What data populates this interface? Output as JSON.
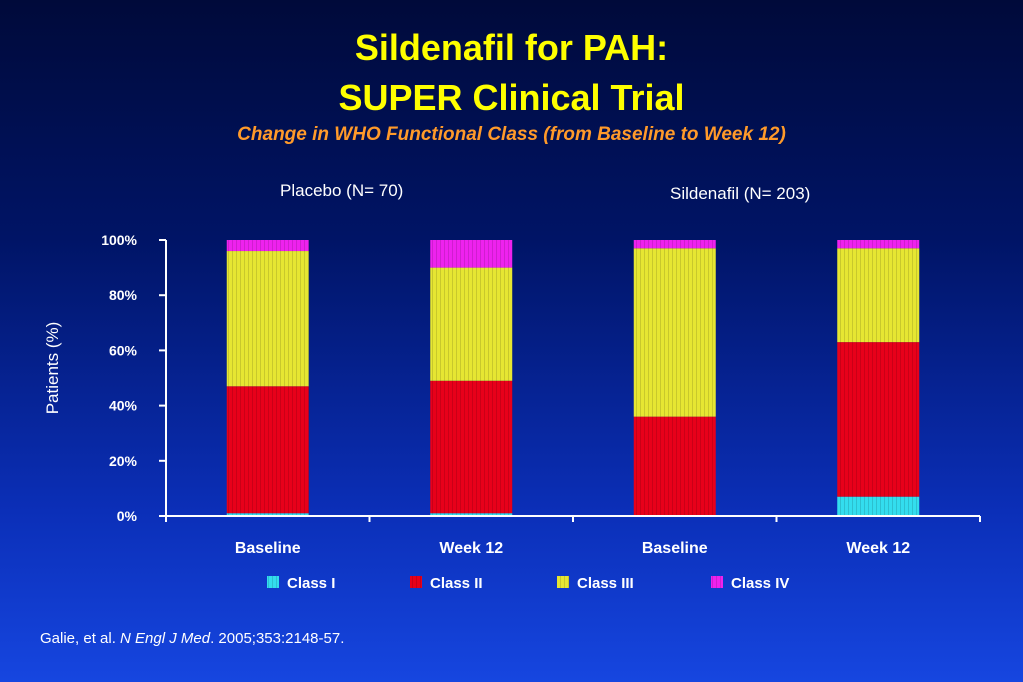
{
  "title_line1": "Sildenafil for PAH:",
  "title_line2": "SUPER Clinical Trial",
  "subtitle": "Change in WHO Functional Class (from Baseline to Week 12)",
  "groups": [
    {
      "label": "Placebo (N= 70)"
    },
    {
      "label": "Sildenafil (N= 203)"
    }
  ],
  "citation": {
    "authors": "Galie, et al. ",
    "journal": "N Engl J Med",
    "details": ". 2005;353:2148-57."
  },
  "chart_data": {
    "type": "bar",
    "stacked": true,
    "categories": [
      "Baseline",
      "Week 12",
      "Baseline",
      "Week 12"
    ],
    "ylabel": "Patients (%)",
    "ylim": [
      0,
      100
    ],
    "yticks": [
      0,
      20,
      40,
      60,
      80,
      100
    ],
    "ytick_labels": [
      "0%",
      "20%",
      "40%",
      "60%",
      "80%",
      "100%"
    ],
    "legend_position": "bottom",
    "series": [
      {
        "name": "Class I",
        "color": "#33ddee",
        "values": [
          1,
          1,
          0,
          7
        ]
      },
      {
        "name": "Class II",
        "color": "#e8001a",
        "values": [
          46,
          48,
          36,
          56
        ]
      },
      {
        "name": "Class III",
        "color": "#e6e632",
        "values": [
          49,
          41,
          61,
          34
        ]
      },
      {
        "name": "Class IV",
        "color": "#ee22ee",
        "values": [
          4,
          10,
          3,
          3
        ]
      }
    ]
  }
}
